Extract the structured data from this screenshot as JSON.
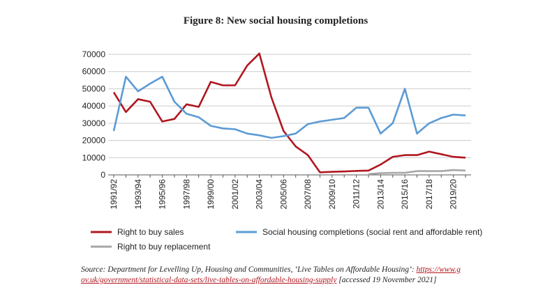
{
  "chart_data": {
    "type": "line",
    "title": "Figure 8: New social housing completions",
    "categories": [
      "1991/92",
      null,
      "1993/94",
      null,
      "1995/96",
      null,
      "1997/98",
      null,
      "1999/00",
      null,
      "2001/02",
      null,
      "2003/04",
      null,
      "2005/06",
      null,
      "2007/08",
      null,
      "2009/10",
      null,
      "2011/12",
      null,
      "2013/14",
      null,
      "2015/16",
      null,
      "2017/18",
      null,
      "2019/20",
      null
    ],
    "series": [
      {
        "name": "Right to buy sales",
        "color": "#b0171f",
        "values": [
          48000,
          36500,
          44000,
          42500,
          31000,
          32500,
          41000,
          39500,
          54000,
          52000,
          52000,
          63500,
          70500,
          45000,
          25500,
          16500,
          11500,
          1500,
          1800,
          2000,
          2300,
          2500,
          6000,
          10500,
          11500,
          11500,
          13500,
          12000,
          10500,
          10000
        ]
      },
      {
        "name": "Social housing completions (social rent and affordable rent)",
        "color": "#5b9bd5",
        "values": [
          25500,
          57000,
          48500,
          53000,
          57000,
          42500,
          35500,
          33500,
          28500,
          27000,
          26500,
          24000,
          23000,
          21500,
          22500,
          24000,
          29500,
          31000,
          32000,
          33000,
          39000,
          39000,
          24000,
          30000,
          50000,
          24000,
          30000,
          33000,
          35000,
          34500
        ]
      },
      {
        "name": "Right to buy replacement",
        "color": "#a6a6a6",
        "values": [
          null,
          null,
          null,
          null,
          null,
          null,
          null,
          null,
          null,
          null,
          null,
          null,
          null,
          null,
          null,
          null,
          null,
          null,
          null,
          null,
          null,
          500,
          1000,
          1200,
          1200,
          2200,
          2200,
          2200,
          2800,
          2500
        ]
      }
    ],
    "ylim": [
      0,
      70000
    ],
    "yticks": [
      0,
      10000,
      20000,
      30000,
      40000,
      50000,
      60000,
      70000
    ],
    "grid": true,
    "source": {
      "prefix": "Source: Department for Levelling Up, Housing and Communities, ‘Live Tables on Affordable Housing’: ",
      "link": "https://www.gov.uk/government/statistical-data-sets/live-tables-on-affordable-housing-supply",
      "suffix": " [accessed 19 November 2021]"
    }
  }
}
